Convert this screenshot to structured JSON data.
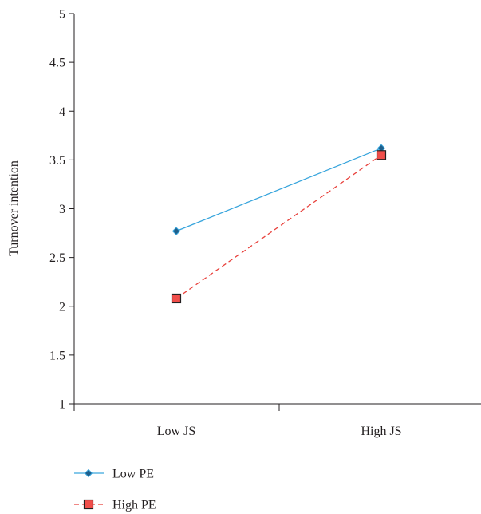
{
  "chart_data": {
    "type": "line",
    "categories": [
      "Low JS",
      "High JS"
    ],
    "ylabel": "Turnover intention",
    "xlabel": "",
    "ylim": [
      1,
      5
    ],
    "yticks": [
      "1",
      "1.5",
      "2",
      "2.5",
      "3",
      "3.5",
      "4",
      "4.5",
      "5"
    ],
    "grid": false,
    "legend_position": "bottom-left",
    "series": [
      {
        "name": "Low PE",
        "values": [
          2.77,
          3.62
        ],
        "color": "#3aa6dd",
        "marker": "diamond",
        "marker_color": "#1f5f8b",
        "dash": "solid"
      },
      {
        "name": "High PE",
        "values": [
          2.08,
          3.55
        ],
        "color": "#e8413c",
        "marker": "square",
        "marker_color": "#f04e4a",
        "dash": "dashed"
      }
    ]
  }
}
